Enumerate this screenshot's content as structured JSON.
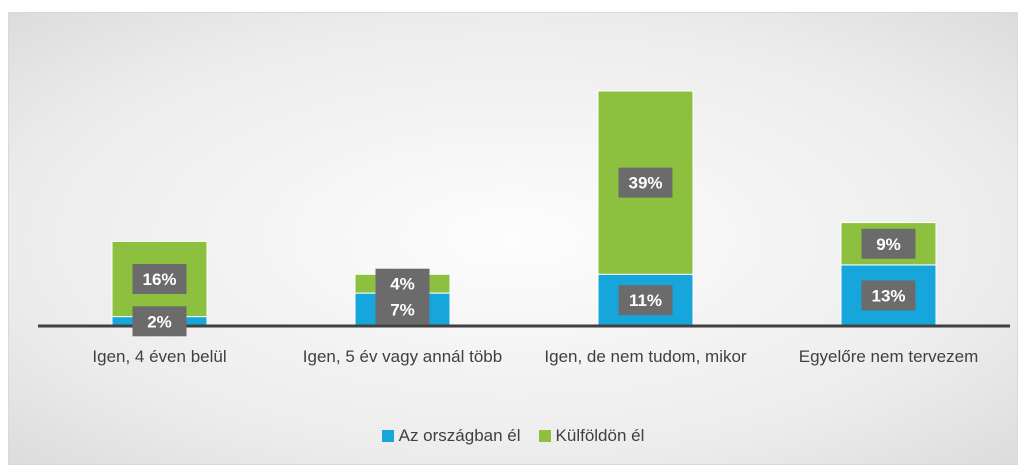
{
  "chart_data": {
    "type": "stacked-bar",
    "categories": [
      "Igen, 4 éven belül",
      "Igen, 5 év vagy annál több",
      "Igen, de nem tudom, mikor",
      "Egyelőre nem tervezem"
    ],
    "series": [
      {
        "name": "Az országban él",
        "color": "#17a6dc",
        "values": [
          2,
          7,
          11,
          13
        ],
        "value_labels": [
          "2%",
          "7%",
          "11%",
          "13%"
        ]
      },
      {
        "name": "Külföldön él",
        "color": "#8dc03f",
        "values": [
          16,
          4,
          39,
          9
        ],
        "value_labels": [
          "16%",
          "4%",
          "39%",
          "9%"
        ]
      }
    ],
    "legend": "bottom"
  }
}
